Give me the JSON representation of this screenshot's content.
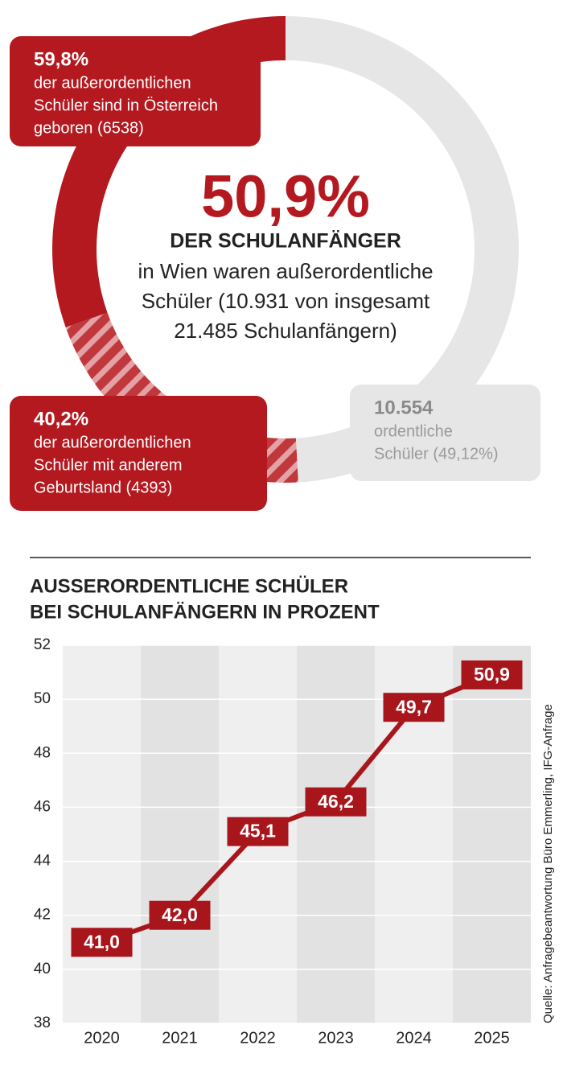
{
  "chart_data": [
    {
      "type": "donut",
      "values": [
        6538,
        4393,
        10554
      ],
      "colors": [
        "#b3191f",
        "#b3191f",
        "#e6e6e6"
      ],
      "hatched": [
        false,
        true,
        false
      ],
      "title": "50,9%",
      "subtitle": "DER SCHULANFÄNGER",
      "description": [
        "in Wien waren außerordentliche",
        "Schüler (10.931 von insgesamt",
        "21.485 Schulanfängern)"
      ],
      "annotations": [
        {
          "title": "59,8%",
          "lines": [
            "der außerordentlichen",
            "Schüler sind in Österreich",
            "geboren (6538)"
          ]
        },
        {
          "title": "40,2%",
          "lines": [
            "der außerordentlichen",
            "Schüler mit anderem",
            "Geburtsland (4393)"
          ]
        },
        {
          "title": "10.554",
          "lines": [
            "ordentliche",
            "Schüler (49,12%)"
          ]
        }
      ]
    },
    {
      "type": "line",
      "title": [
        "AUSSERORDENTLICHE SCHÜLER",
        "BEI SCHULANFÄNGERN IN PROZENT"
      ],
      "categories": [
        "2020",
        "2021",
        "2022",
        "2023",
        "2024",
        "2025"
      ],
      "values": [
        41.0,
        42.0,
        45.1,
        46.2,
        49.7,
        50.9
      ],
      "value_labels": [
        "41,0",
        "42,0",
        "45,1",
        "46,2",
        "49,7",
        "50,9"
      ],
      "color": "#a8161c",
      "ylim": [
        38,
        52
      ],
      "yticks": [
        38,
        40,
        42,
        44,
        46,
        48,
        50,
        52
      ],
      "grid": true,
      "source": "Quelle: Anfragebeantwortung Büro Emmerling, IFG-Anfrage"
    }
  ]
}
